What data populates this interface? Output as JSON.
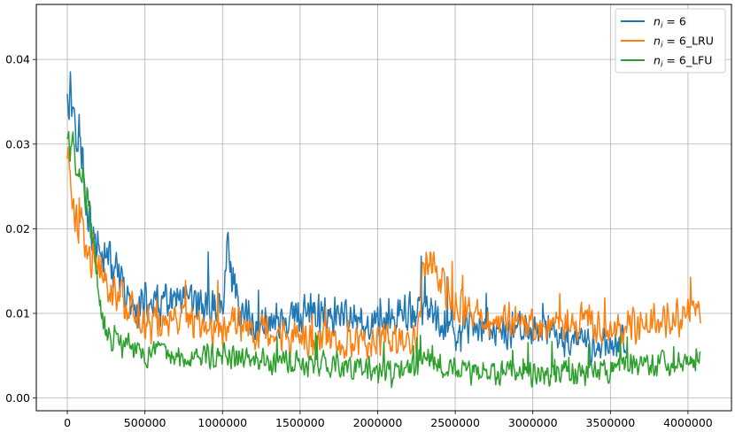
{
  "chart_data": {
    "type": "line",
    "title": "",
    "xlabel": "",
    "ylabel": "",
    "xlim": [
      -200000,
      4280000
    ],
    "ylim": [
      -0.0015,
      0.0465
    ],
    "grid": true,
    "legend_position": "top-right",
    "x_ticks": [
      0,
      500000,
      1000000,
      1500000,
      2000000,
      2500000,
      3000000,
      3500000,
      4000000
    ],
    "x_tick_labels": [
      "0",
      "500000",
      "1000000",
      "1500000",
      "2000000",
      "2500000",
      "3000000",
      "3500000",
      "4000000"
    ],
    "y_ticks": [
      0.0,
      0.01,
      0.02,
      0.03,
      0.04
    ],
    "y_tick_labels": [
      "0.00",
      "0.01",
      "0.02",
      "0.03",
      "0.04"
    ],
    "series": [
      {
        "name_base": "n",
        "name_sub": "i",
        "name_rest": " = 6",
        "color": "#1f77b4",
        "x": [
          0,
          50000,
          100000,
          150000,
          200000,
          250000,
          300000,
          400000,
          500000,
          600000,
          700000,
          800000,
          900000,
          1000000,
          1030000,
          1100000,
          1200000,
          1400000,
          1600000,
          1800000,
          2000000,
          2200000,
          2300000,
          2400000,
          2600000,
          2800000,
          3000000,
          3200000,
          3400000,
          3600000
        ],
        "values": [
          0.037,
          0.034,
          0.028,
          0.02,
          0.017,
          0.017,
          0.015,
          0.011,
          0.011,
          0.011,
          0.011,
          0.011,
          0.011,
          0.011,
          0.018,
          0.011,
          0.009,
          0.009,
          0.01,
          0.009,
          0.009,
          0.01,
          0.011,
          0.008,
          0.008,
          0.008,
          0.008,
          0.007,
          0.006,
          0.007
        ],
        "noise": 0.0022
      },
      {
        "name_base": "n",
        "name_sub": "i",
        "name_rest": " = 6_LRU",
        "color": "#ff7f0e",
        "x": [
          0,
          50000,
          100000,
          150000,
          200000,
          250000,
          300000,
          400000,
          500000,
          600000,
          800000,
          1000000,
          1150000,
          1200000,
          1300000,
          1500000,
          1700000,
          1900000,
          2100000,
          2250000,
          2300000,
          2350000,
          2400000,
          2500000,
          2600000,
          2800000,
          3000000,
          3200000,
          3400000,
          3600000,
          3800000,
          4000000,
          4080000
        ],
        "values": [
          0.029,
          0.022,
          0.019,
          0.017,
          0.015,
          0.013,
          0.013,
          0.011,
          0.009,
          0.009,
          0.009,
          0.008,
          0.009,
          0.008,
          0.008,
          0.007,
          0.007,
          0.007,
          0.007,
          0.007,
          0.016,
          0.017,
          0.013,
          0.011,
          0.01,
          0.009,
          0.009,
          0.009,
          0.009,
          0.008,
          0.009,
          0.01,
          0.01
        ],
        "noise": 0.0022
      },
      {
        "name_base": "n",
        "name_sub": "i",
        "name_rest": " = 6_LFU",
        "color": "#2ca02c",
        "x": [
          0,
          50000,
          100000,
          150000,
          200000,
          250000,
          300000,
          400000,
          500000,
          700000,
          1000000,
          1300000,
          1500000,
          1800000,
          2000000,
          2200000,
          2300000,
          2500000,
          2800000,
          3000000,
          3200000,
          3400000,
          3600000,
          3800000,
          4000000,
          4080000
        ],
        "values": [
          0.031,
          0.029,
          0.026,
          0.021,
          0.012,
          0.007,
          0.007,
          0.006,
          0.005,
          0.005,
          0.005,
          0.004,
          0.004,
          0.004,
          0.003,
          0.003,
          0.005,
          0.003,
          0.003,
          0.003,
          0.003,
          0.003,
          0.004,
          0.004,
          0.004,
          0.005
        ],
        "noise": 0.0017
      }
    ]
  }
}
